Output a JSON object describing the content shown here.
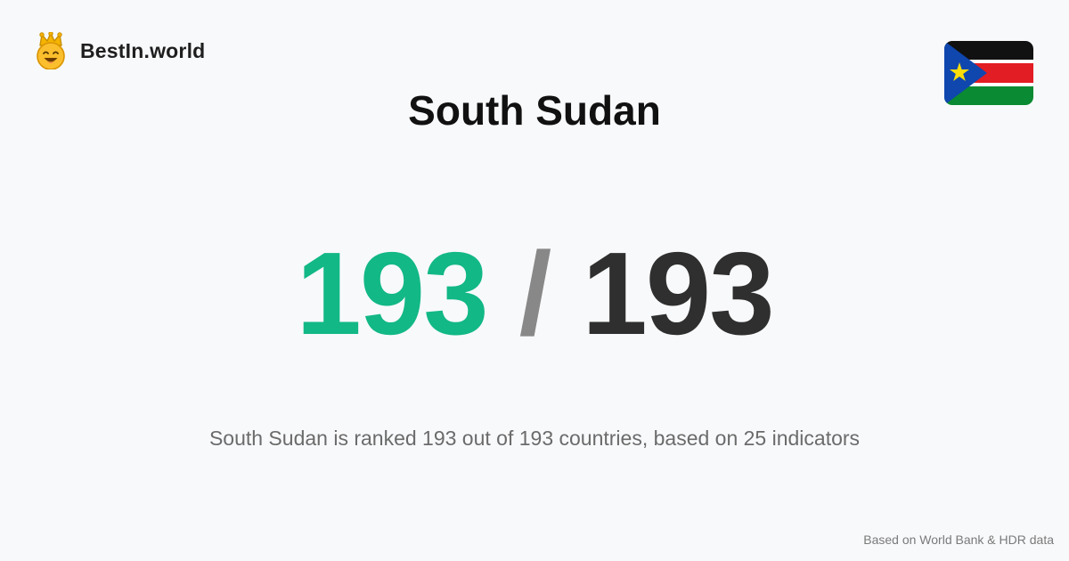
{
  "brand": {
    "name": "BestIn.world",
    "logo_icon": "crowned-smiley-icon"
  },
  "country": {
    "name": "South Sudan",
    "flag_icon": "south-sudan-flag-icon"
  },
  "ranking": {
    "rank": "193",
    "separator": "/",
    "total": "193",
    "summary": "South Sudan is ranked 193 out of 193 countries, based on 25 indicators"
  },
  "footer": {
    "source": "Based on World Bank & HDR data"
  },
  "colors": {
    "background": "#f8f9fb",
    "rank_accent": "#12b886",
    "total_text": "#2f2f2f",
    "separator": "#888888"
  }
}
